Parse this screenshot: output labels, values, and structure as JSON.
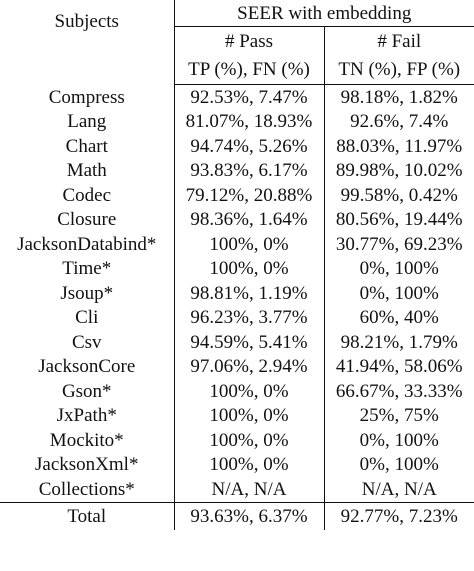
{
  "header": {
    "subjects_label": "Subjects",
    "group_label": "SEER with embedding",
    "pass_label": "# Pass",
    "fail_label": "# Fail",
    "pass_metrics": "TP (%), FN (%)",
    "fail_metrics": "TN (%), FP (%)"
  },
  "rows": [
    {
      "subject": "Compress",
      "pass": "92.53%, 7.47%",
      "fail": "98.18%, 1.82%"
    },
    {
      "subject": "Lang",
      "pass": "81.07%, 18.93%",
      "fail": "92.6%, 7.4%"
    },
    {
      "subject": "Chart",
      "pass": "94.74%, 5.26%",
      "fail": "88.03%, 11.97%"
    },
    {
      "subject": "Math",
      "pass": "93.83%, 6.17%",
      "fail": "89.98%, 10.02%"
    },
    {
      "subject": "Codec",
      "pass": "79.12%, 20.88%",
      "fail": "99.58%, 0.42%"
    },
    {
      "subject": "Closure",
      "pass": "98.36%, 1.64%",
      "fail": "80.56%, 19.44%"
    },
    {
      "subject": "JacksonDatabind*",
      "pass": "100%, 0%",
      "fail": "30.77%, 69.23%"
    },
    {
      "subject": "Time*",
      "pass": "100%, 0%",
      "fail": "0%, 100%"
    },
    {
      "subject": "Jsoup*",
      "pass": "98.81%, 1.19%",
      "fail": "0%, 100%"
    },
    {
      "subject": "Cli",
      "pass": "96.23%, 3.77%",
      "fail": "60%, 40%"
    },
    {
      "subject": "Csv",
      "pass": "94.59%, 5.41%",
      "fail": "98.21%, 1.79%"
    },
    {
      "subject": "JacksonCore",
      "pass": "97.06%, 2.94%",
      "fail": "41.94%, 58.06%"
    },
    {
      "subject": "Gson*",
      "pass": "100%, 0%",
      "fail": "66.67%, 33.33%"
    },
    {
      "subject": "JxPath*",
      "pass": "100%, 0%",
      "fail": "25%, 75%"
    },
    {
      "subject": "Mockito*",
      "pass": "100%, 0%",
      "fail": "0%, 100%"
    },
    {
      "subject": "JacksonXml*",
      "pass": "100%, 0%",
      "fail": "0%, 100%"
    },
    {
      "subject": "Collections*",
      "pass": "N/A, N/A",
      "fail": "N/A, N/A"
    }
  ],
  "total": {
    "subject": "Total",
    "pass": "93.63%, 6.37%",
    "fail": "92.77%, 7.23%"
  }
}
